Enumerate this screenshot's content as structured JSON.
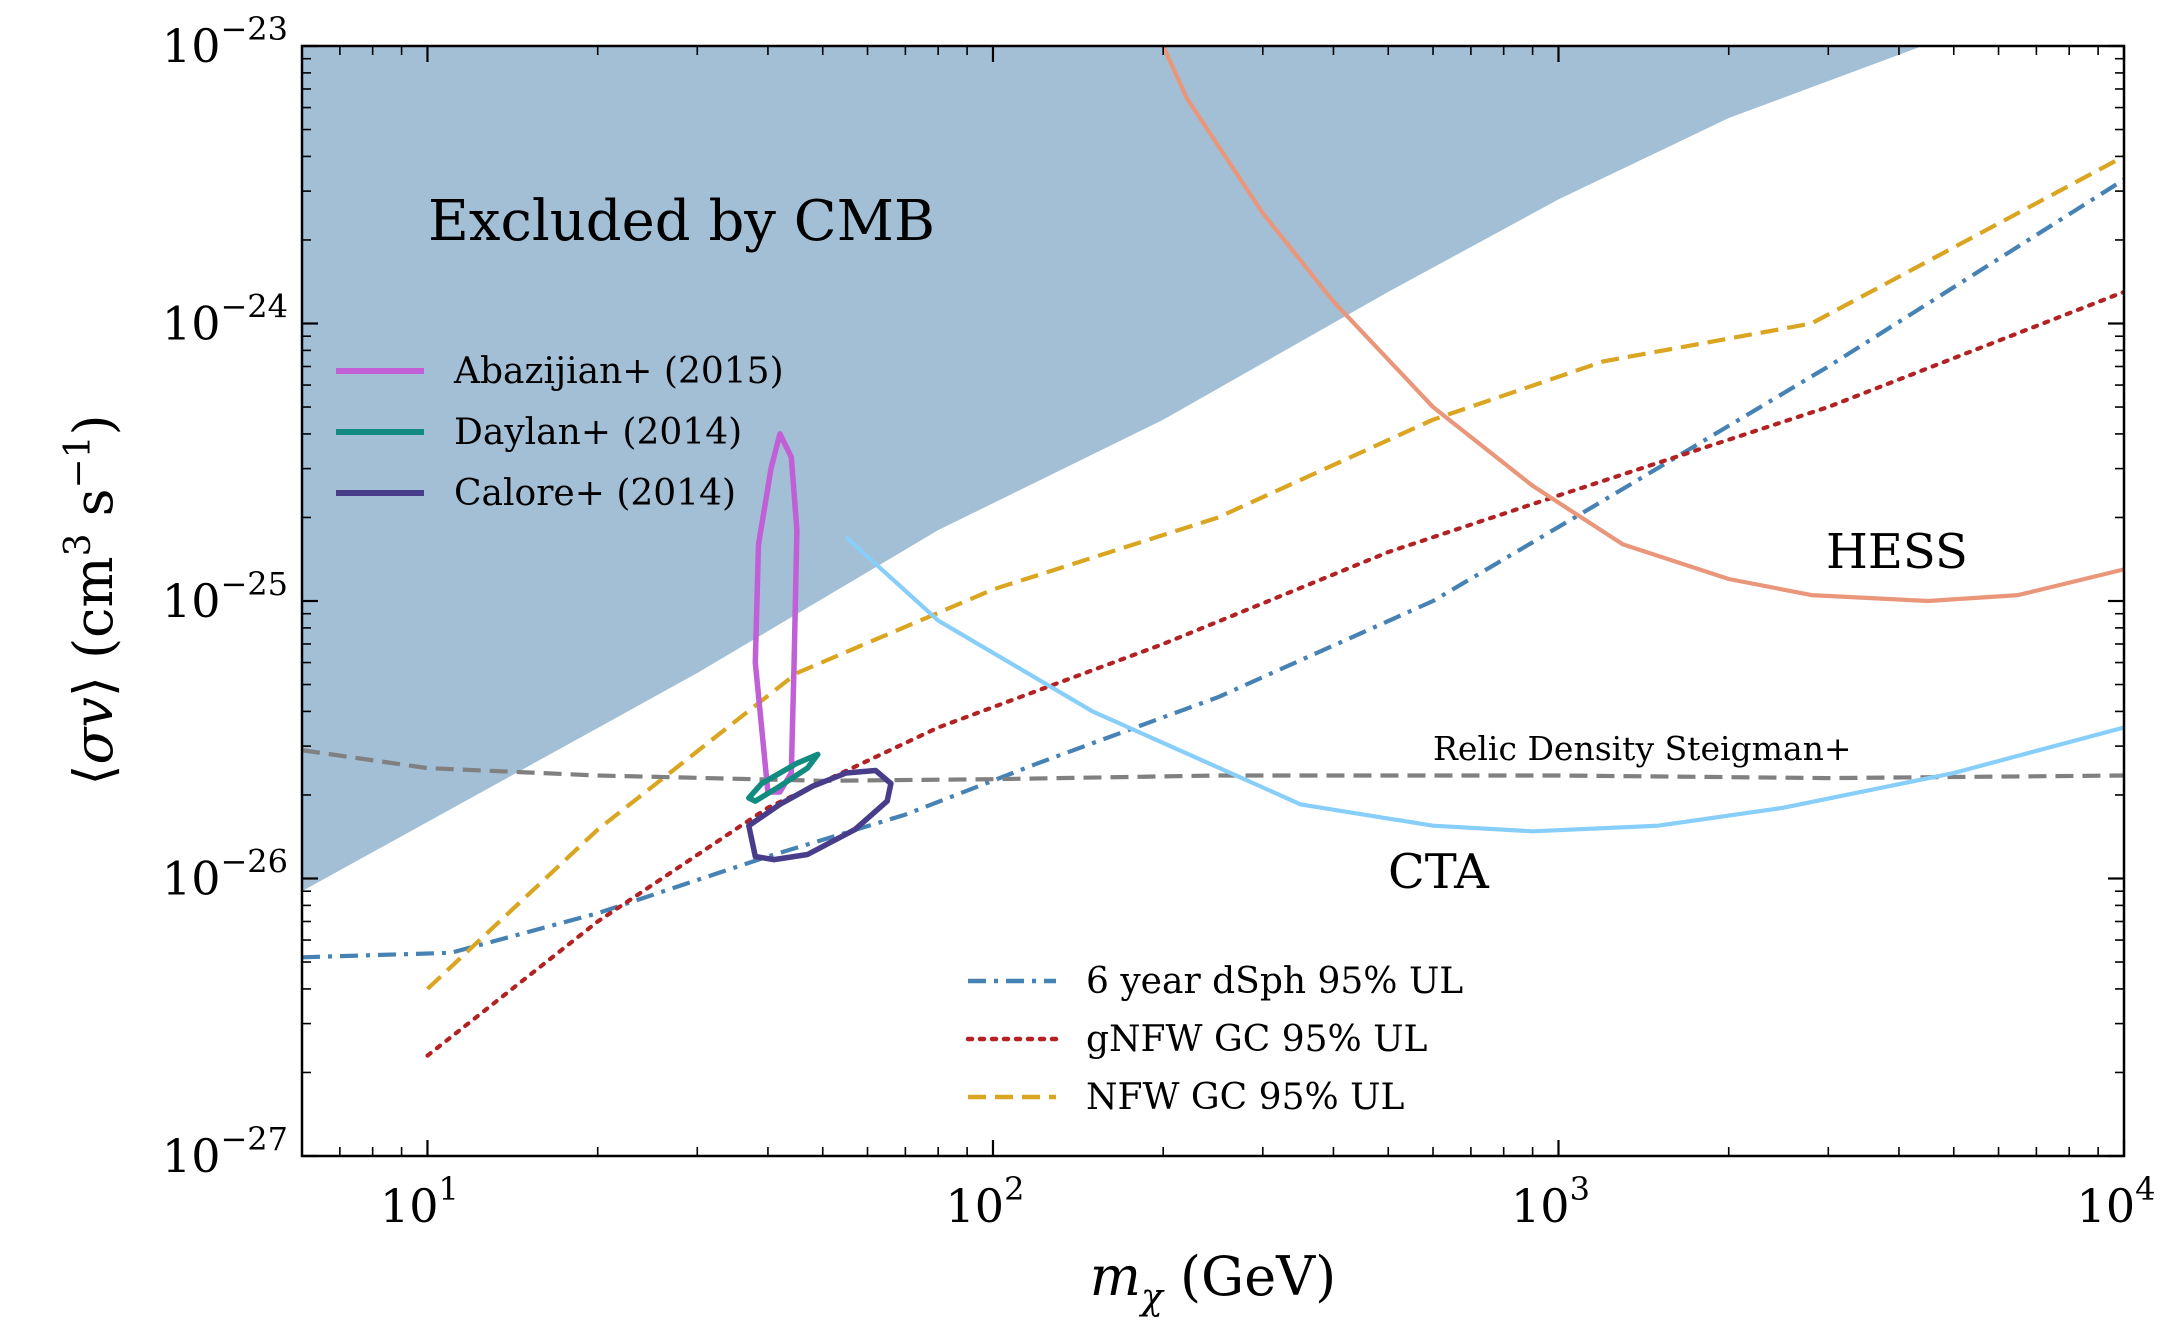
{
  "chart_data": {
    "type": "line",
    "xlabel": "m_χ (GeV)",
    "ylabel": "⟨σv⟩ (cm³ s⁻¹)",
    "xscale": "log",
    "yscale": "log",
    "xlim": [
      6,
      10000
    ],
    "ylim": [
      1e-27,
      1e-23
    ],
    "x_ticks": [
      {
        "value": 10,
        "label": "10",
        "exp": "1"
      },
      {
        "value": 100,
        "label": "10",
        "exp": "2"
      },
      {
        "value": 1000,
        "label": "10",
        "exp": "3"
      },
      {
        "value": 10000,
        "label": "10",
        "exp": "4"
      }
    ],
    "y_ticks": [
      {
        "value": 1e-27,
        "label": "10",
        "exp": "−27"
      },
      {
        "value": 1e-26,
        "label": "10",
        "exp": "−26"
      },
      {
        "value": 1e-25,
        "label": "10",
        "exp": "−25"
      },
      {
        "value": 1e-24,
        "label": "10",
        "exp": "−24"
      },
      {
        "value": 1e-23,
        "label": "10",
        "exp": "−23"
      }
    ],
    "grid": false,
    "excluded_region": {
      "label": "Excluded by CMB",
      "color": "#a3bfd6",
      "x": [
        6,
        30,
        80,
        200,
        500,
        1000,
        2000,
        4400
      ],
      "y": [
        9e-27,
        5.5e-26,
        1.8e-25,
        4.5e-25,
        1.3e-24,
        2.8e-24,
        5.5e-24,
        1e-23
      ]
    },
    "series": [
      {
        "name": "6 year dSph 95% UL",
        "color": "#4682b4",
        "style": "dashdot",
        "x": [
          6,
          11,
          20,
          40,
          70,
          120,
          250,
          600,
          1200,
          3000,
          10000
        ],
        "y": [
          5.2e-27,
          5.4e-27,
          7.5e-27,
          1.2e-26,
          1.7e-26,
          2.6e-26,
          4.5e-26,
          1e-25,
          2.3e-25,
          7e-25,
          3.3e-24
        ]
      },
      {
        "name": "gNFW GC 95% UL",
        "color": "#b22222",
        "style": "dotted",
        "x": [
          10,
          20,
          40,
          80,
          200,
          500,
          1000,
          3000,
          10000
        ],
        "y": [
          2.3e-27,
          7e-27,
          1.8e-26,
          3.5e-26,
          7e-26,
          1.5e-25,
          2.4e-25,
          5e-25,
          1.3e-24
        ]
      },
      {
        "name": "NFW GC 95% UL",
        "color": "#daa520",
        "style": "dashed",
        "x": [
          10,
          20,
          45,
          100,
          250,
          600,
          1200,
          2800,
          10000
        ],
        "y": [
          4e-27,
          1.5e-26,
          5.5e-26,
          1.1e-25,
          2e-25,
          4.5e-25,
          7.3e-25,
          1e-24,
          4e-24
        ]
      },
      {
        "name": "Relic Density Steigman+",
        "color": "#808080",
        "style": "dashed",
        "x": [
          6,
          10,
          20,
          50,
          100,
          250,
          1000,
          3000,
          10000
        ],
        "y": [
          2.9e-26,
          2.5e-26,
          2.35e-26,
          2.25e-26,
          2.28e-26,
          2.35e-26,
          2.35e-26,
          2.3e-26,
          2.35e-26
        ]
      },
      {
        "name": "CTA",
        "color": "#87cefa",
        "style": "solid",
        "x": [
          55,
          80,
          150,
          350,
          600,
          900,
          1500,
          2500,
          5000,
          10000
        ],
        "y": [
          1.7e-25,
          8.5e-26,
          4e-26,
          1.85e-26,
          1.55e-26,
          1.48e-26,
          1.55e-26,
          1.8e-26,
          2.4e-26,
          3.5e-26
        ]
      },
      {
        "name": "HESS",
        "color": "#e9967a",
        "style": "solid",
        "x": [
          200,
          220,
          300,
          400,
          600,
          900,
          1300,
          2000,
          2800,
          4500,
          6500,
          10000
        ],
        "y": [
          1e-23,
          6.5e-24,
          2.5e-24,
          1.2e-24,
          5e-25,
          2.6e-25,
          1.6e-25,
          1.2e-25,
          1.05e-25,
          1e-25,
          1.05e-25,
          1.3e-25
        ]
      }
    ],
    "contours": [
      {
        "name": "Abazijian+ (2015)",
        "color": "#c05fd6",
        "x": [
          40,
          38,
          38.5,
          40.5,
          42,
          44,
          45,
          44.5,
          44,
          42,
          40
        ],
        "y": [
          2.05e-26,
          6e-26,
          1.6e-25,
          3e-25,
          4e-25,
          3.3e-25,
          1.8e-25,
          6e-26,
          2.4e-26,
          2.05e-26,
          2.05e-26
        ]
      },
      {
        "name": "Daylan+ (2014)",
        "color": "#128c80",
        "x": [
          37,
          39,
          45,
          49,
          47,
          42,
          38,
          37
        ],
        "y": [
          1.95e-26,
          2.2e-26,
          2.6e-26,
          2.8e-26,
          2.5e-26,
          2.15e-26,
          1.9e-26,
          1.95e-26
        ]
      },
      {
        "name": "Calore+ (2014)",
        "color": "#483d8b",
        "x": [
          38,
          41,
          47,
          57,
          65,
          66,
          62,
          55,
          48,
          42,
          37,
          38
        ],
        "y": [
          1.2e-26,
          1.17e-26,
          1.22e-26,
          1.5e-26,
          1.9e-26,
          2.2e-26,
          2.45e-26,
          2.4e-26,
          2.15e-26,
          1.85e-26,
          1.55e-26,
          1.2e-26
        ]
      }
    ],
    "legend_top_left": [
      "Abazijian+ (2015)",
      "Daylan+ (2014)",
      "Calore+ (2014)"
    ],
    "legend_bottom": [
      "6 year dSph 95% UL",
      "gNFW GC 95% UL",
      "NFW GC 95% UL"
    ],
    "annotations": {
      "relic": "Relic Density Steigman+",
      "cta": "CTA",
      "hess": "HESS"
    }
  }
}
